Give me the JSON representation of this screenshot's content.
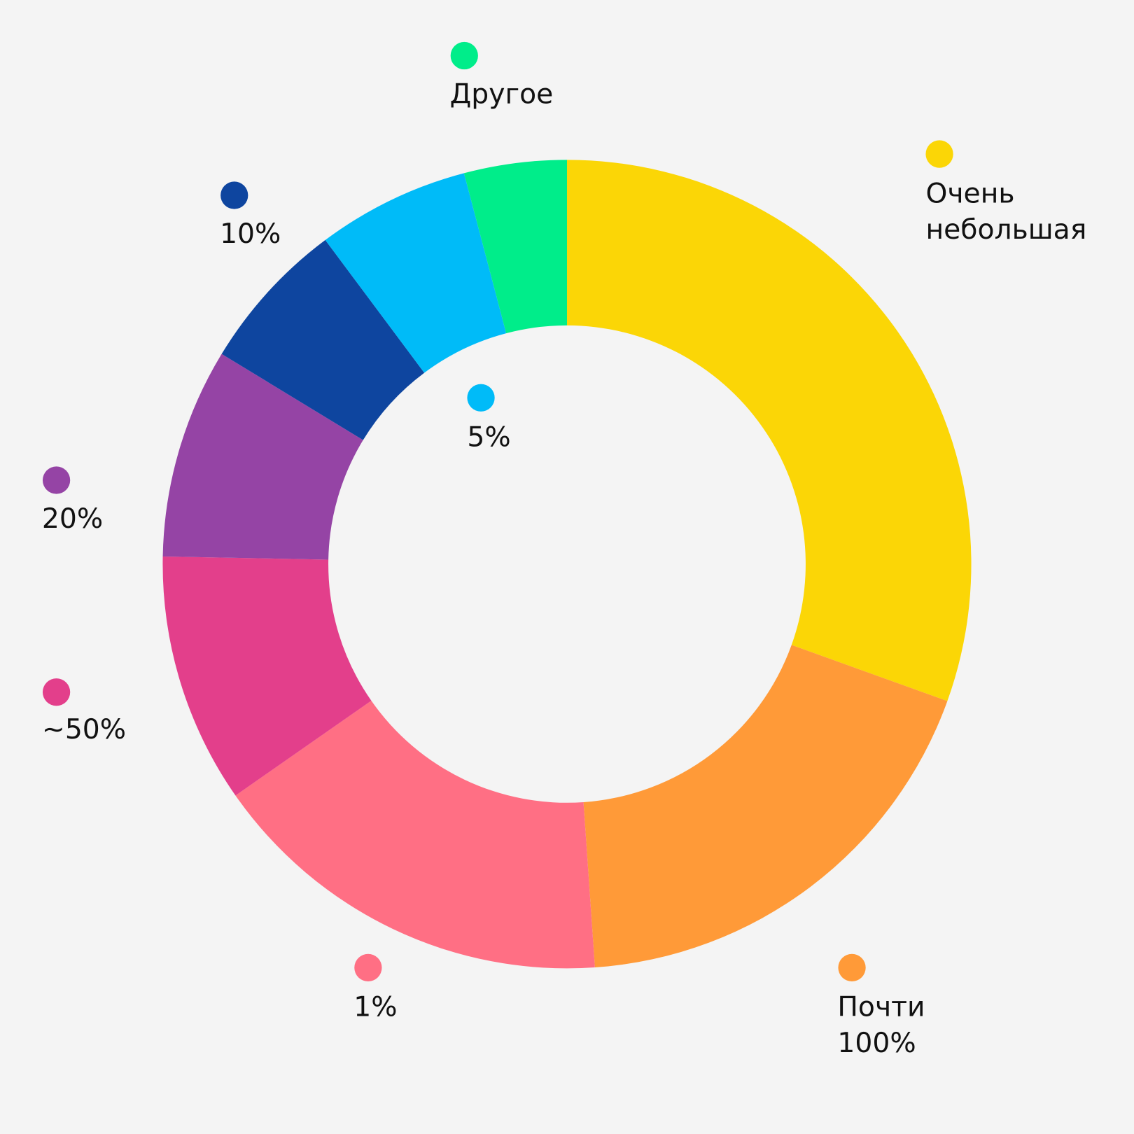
{
  "chart_data": {
    "type": "donut",
    "categories": [
      "Очень небольшая",
      "Почти 100%",
      "1%",
      "~50%",
      "20%",
      "10%",
      "5%",
      "Другое"
    ],
    "values": [
      30.5,
      18.4,
      16.4,
      10,
      8.4,
      6.1,
      6.1,
      4.1
    ],
    "colors": [
      "#fbd606",
      "#ff9a38",
      "#ff6f84",
      "#e33f8b",
      "#9544a5",
      "#0e459f",
      "#00bbf8",
      "#00ed8a"
    ]
  }
}
